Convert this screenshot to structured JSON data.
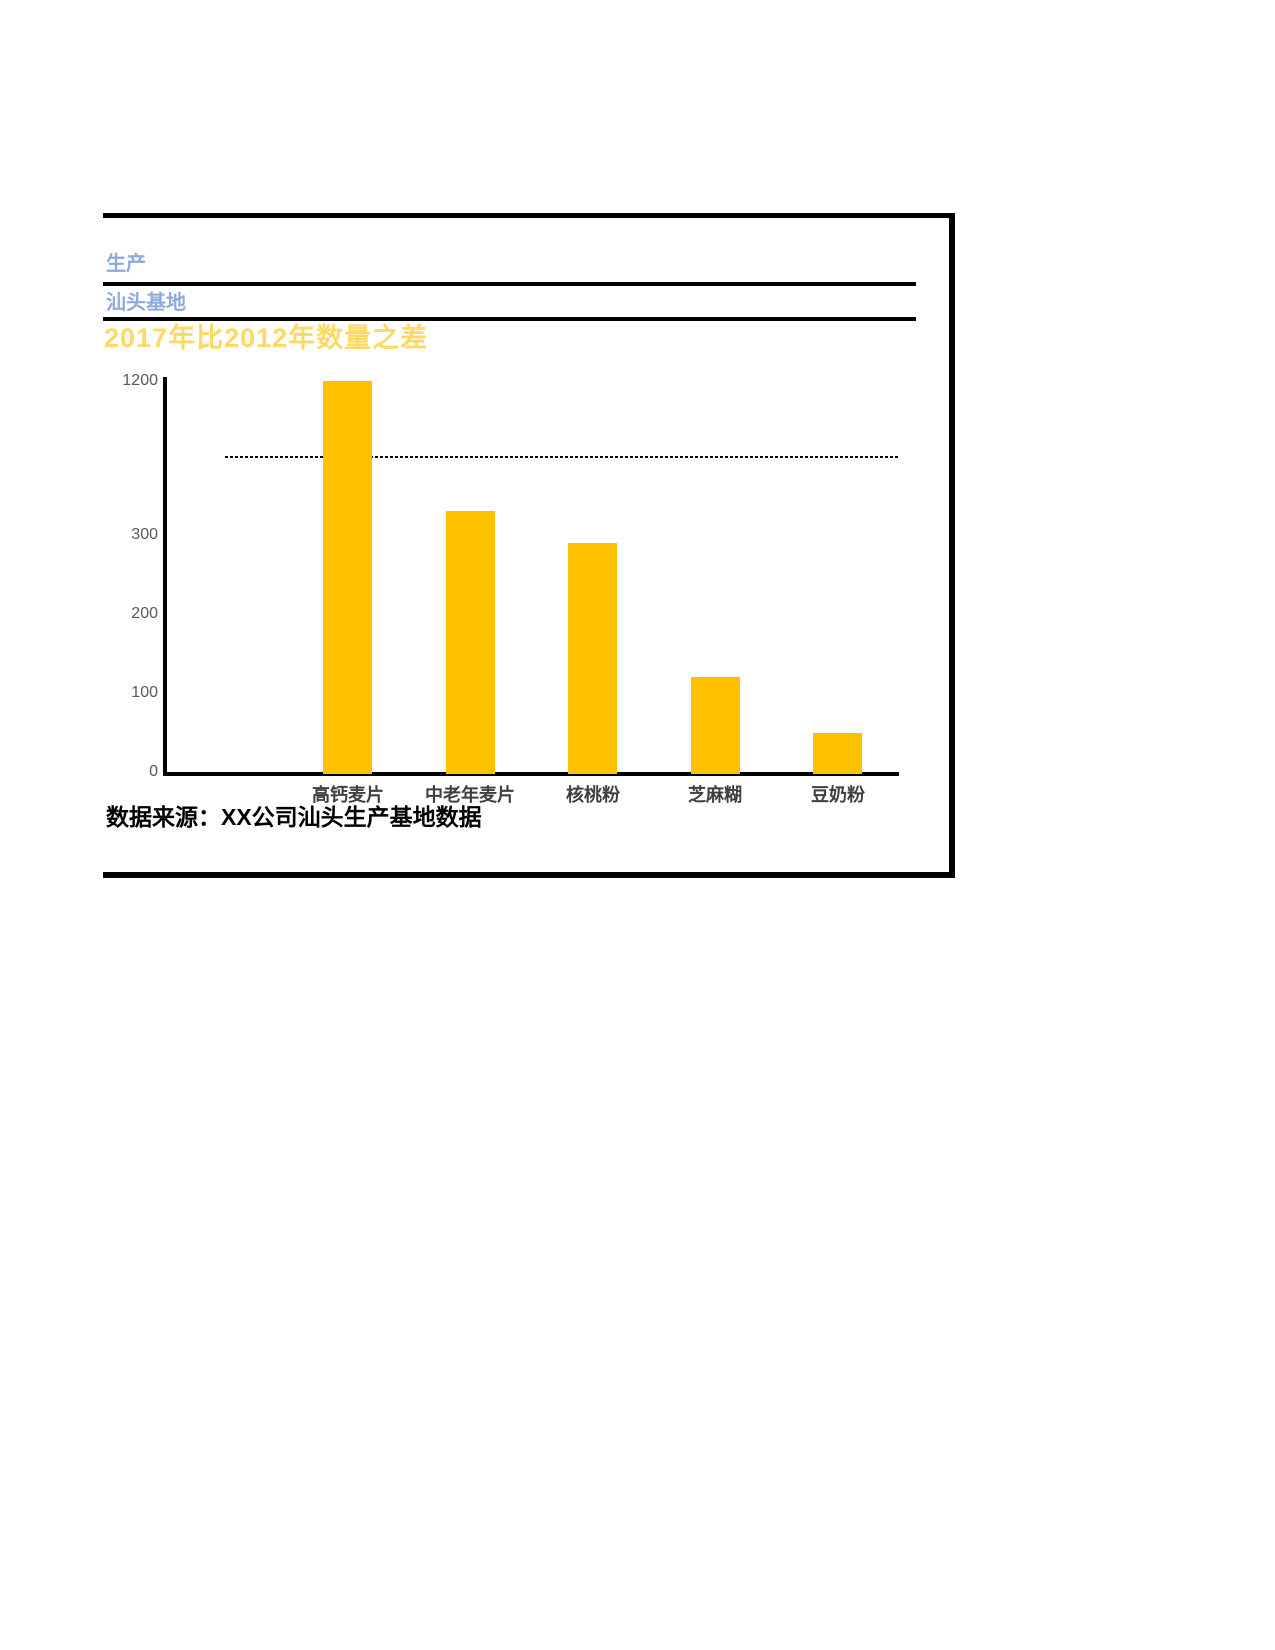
{
  "header": {
    "line1": "生产",
    "line2": "汕头基地",
    "accent_blue": "#8EA9DB"
  },
  "chart_data": {
    "type": "bar",
    "title": "2017年比2012年数量之差",
    "title_color": "#FFD966",
    "categories": [
      "高钙麦片",
      "中老年麦片",
      "核桃粉",
      "芝麻糊",
      "豆奶粉"
    ],
    "values": [
      1200,
      330,
      290,
      120,
      50
    ],
    "bar_color": "#FFC000",
    "xlabel": "",
    "ylabel": "",
    "ylim": [
      0,
      1200
    ],
    "yticks": [
      0,
      100,
      200,
      300,
      1200
    ],
    "broken_axis": true,
    "clipped_bar_value": 1200,
    "reference_line_value": 400,
    "grid": false,
    "legend": false,
    "tick_color": "#595959",
    "axis_color": "#000000"
  },
  "source": {
    "text": "数据来源：XX公司汕头生产基地数据"
  }
}
